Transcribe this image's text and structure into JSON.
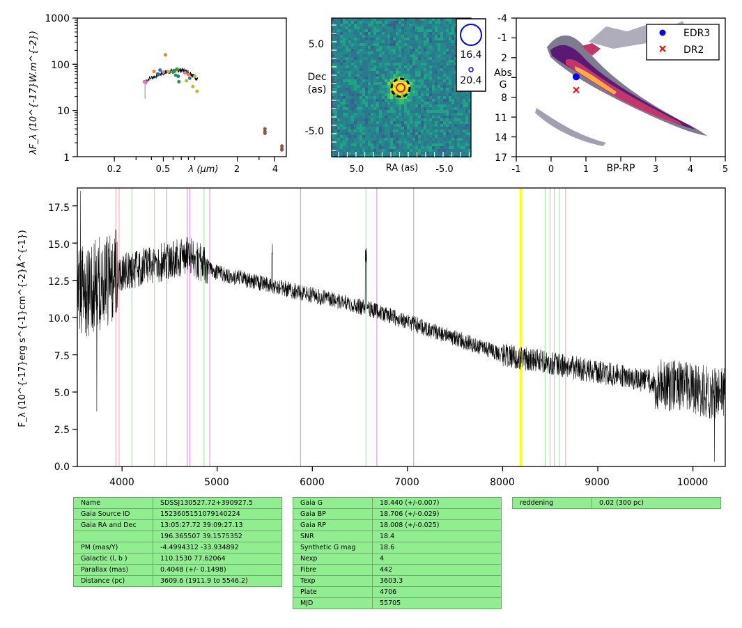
{
  "sed": {
    "ylabel": "λF_λ (10^{-17}W.m^{-2})",
    "xlabel": "λ (μm)",
    "yticks": [
      "1000",
      "100",
      "10",
      "1"
    ],
    "xticks": [
      "0.2",
      "0.5",
      "2",
      "4"
    ],
    "points": [
      {
        "x": 0.35,
        "y": 42,
        "color": "#e377c2"
      },
      {
        "x": 0.36,
        "y": 40,
        "color": "#e377c2"
      },
      {
        "x": 0.42,
        "y": 70,
        "color": "#ff7f0e"
      },
      {
        "x": 0.45,
        "y": 62,
        "color": "#1f77b4"
      },
      {
        "x": 0.47,
        "y": 75,
        "color": "#1f77b4"
      },
      {
        "x": 0.5,
        "y": 68,
        "color": "#e377c2"
      },
      {
        "x": 0.52,
        "y": 160,
        "color": "#ff7f0e"
      },
      {
        "x": 0.55,
        "y": 70,
        "color": "#bcbd22"
      },
      {
        "x": 0.6,
        "y": 68,
        "color": "#1f77b4"
      },
      {
        "x": 0.62,
        "y": 72,
        "color": "#2ca02c"
      },
      {
        "x": 0.63,
        "y": 58,
        "color": "#2ca02c"
      },
      {
        "x": 0.65,
        "y": 78,
        "color": "#2ca02c"
      },
      {
        "x": 0.66,
        "y": 55,
        "color": "#1f77b4"
      },
      {
        "x": 0.67,
        "y": 42,
        "color": "#2ca02c"
      },
      {
        "x": 0.75,
        "y": 65,
        "color": "#e377c2"
      },
      {
        "x": 0.77,
        "y": 44,
        "color": "#bcbd22"
      },
      {
        "x": 0.8,
        "y": 60,
        "color": "#ff7f0e"
      },
      {
        "x": 0.82,
        "y": 50,
        "color": "#1f77b4"
      },
      {
        "x": 0.87,
        "y": 33,
        "color": "#bcbd22"
      },
      {
        "x": 0.9,
        "y": 55,
        "color": "#bcbd22"
      },
      {
        "x": 0.94,
        "y": 26,
        "color": "#bcbd22"
      },
      {
        "x": 3.35,
        "y": 4.0,
        "color": "#8c564b"
      },
      {
        "x": 3.35,
        "y": 3.5,
        "color": "#8c564b"
      },
      {
        "x": 3.35,
        "y": 3.2,
        "color": "#8c564b"
      },
      {
        "x": 4.6,
        "y": 1.7,
        "color": "#8c564b"
      },
      {
        "x": 4.6,
        "y": 1.5,
        "color": "#8c564b"
      },
      {
        "x": 4.6,
        "y": 1.4,
        "color": "#8c564b"
      }
    ]
  },
  "image": {
    "ylabel_line1": "Dec",
    "ylabel_line2": "(as)",
    "xlabel": "RA (as)",
    "yticks": [
      "5.0",
      "-5.0"
    ],
    "xticks": [
      "5.0",
      "-5.0"
    ],
    "legend_big": "16.4",
    "legend_small": "20.4"
  },
  "cmd": {
    "ylabel_line1": "Abs",
    "ylabel_line2": "G",
    "xlabel": "BP-RP",
    "yticks": [
      "-4",
      "-1",
      "2",
      "5",
      "8",
      "11",
      "14",
      "17"
    ],
    "xticks": [
      "-1",
      "0",
      "1",
      "3",
      "4",
      "5"
    ],
    "legend": [
      {
        "label": "EDR3",
        "color": "#0000ff",
        "marker": "circle"
      },
      {
        "label": "DR2",
        "color": "#ff0000",
        "marker": "cross"
      }
    ],
    "edr3": {
      "x": 0.72,
      "y": 4.9
    },
    "dr2": {
      "x": 0.72,
      "y": 6.9
    }
  },
  "spectrum": {
    "ylabel": "F_λ (10^{-17}erg s^{-1}cm^{-2}Å^{-1})",
    "yticks": [
      "17.5",
      "15.0",
      "12.5",
      "10.0",
      "7.5",
      "5.0",
      "2.5",
      "0.0"
    ],
    "xticks": [
      "4000",
      "5000",
      "6000",
      "7000",
      "8000",
      "9000",
      "10000"
    ],
    "lines": [
      {
        "x": 3934,
        "color": "#ff9fb0"
      },
      {
        "x": 3969,
        "color": "#ff9fb0"
      },
      {
        "x": 4102,
        "color": "#90ee90"
      },
      {
        "x": 4341,
        "color": "#90ee90"
      },
      {
        "x": 4471,
        "color": "#dd88dd"
      },
      {
        "x": 4686,
        "color": "#dd88dd"
      },
      {
        "x": 4713,
        "color": "#dd88dd"
      },
      {
        "x": 4861,
        "color": "#90ee90"
      },
      {
        "x": 4922,
        "color": "#dd88dd"
      },
      {
        "x": 5876,
        "color": "#dd88dd"
      },
      {
        "x": 6563,
        "color": "#90ee90"
      },
      {
        "x": 6678,
        "color": "#dd88dd"
      },
      {
        "x": 7065,
        "color": "#dd88dd"
      },
      {
        "x": 8183,
        "color": "#ffff00"
      },
      {
        "x": 8195,
        "color": "#ffff00"
      },
      {
        "x": 8446,
        "color": "#90ee90"
      },
      {
        "x": 8498,
        "color": "#ff9fb0"
      },
      {
        "x": 8542,
        "color": "#ff9fb0"
      },
      {
        "x": 8598,
        "color": "#90ee90"
      },
      {
        "x": 8662,
        "color": "#ff9fb0"
      }
    ]
  },
  "tables": {
    "left": [
      {
        "k": "Name",
        "v": "SDSSJ130527.72+390927.5"
      },
      {
        "k": "Gaia Source ID",
        "v": "1523605151079140224"
      },
      {
        "k": "Gaia RA and Dec",
        "v": "13:05:27.72    39:09:27.13"
      },
      {
        "k": "",
        "v": "196.365507    39.1575352"
      },
      {
        "k": "PM (mas/Y)",
        "v": "-4.4994312    -33.934892"
      },
      {
        "k": "Galactic (l, b )",
        "v": "110.1530    77.62064"
      },
      {
        "k": "Parallax (mas)",
        "v": "0.4048 (+/- 0.1498)"
      },
      {
        "k": "Distance (pc)",
        "v": "3609.6 (1911.9 to 5546.2)"
      }
    ],
    "middle": [
      {
        "k": "Gaia G",
        "v": "18.440 (+/-0.007)"
      },
      {
        "k": "Gaia BP",
        "v": "18.706 (+/-0.029)"
      },
      {
        "k": "Gaia RP",
        "v": "18.008 (+/-0.025)"
      },
      {
        "k": "SNR",
        "v": "18.4"
      },
      {
        "k": "Synthetic G mag",
        "v": "18.6"
      },
      {
        "k": "Nexp",
        "v": "4"
      },
      {
        "k": "Fibre",
        "v": "442"
      },
      {
        "k": "Texp",
        "v": "3603.3"
      },
      {
        "k": "Plate",
        "v": "4706"
      },
      {
        "k": "MJD",
        "v": "55705"
      }
    ],
    "right": [
      {
        "k": "reddening",
        "v": "0.02 (300 pc)"
      }
    ]
  }
}
